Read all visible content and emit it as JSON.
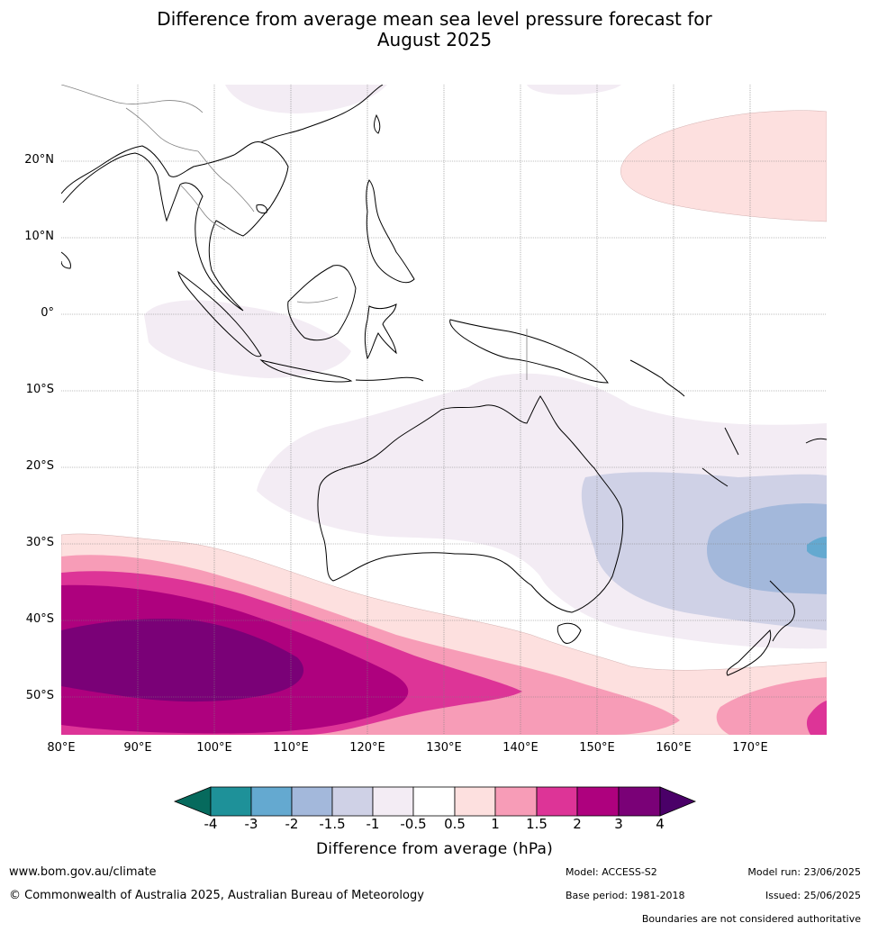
{
  "title": {
    "line1": "Difference from average mean sea level pressure forecast for",
    "line2": "August 2025"
  },
  "map": {
    "latitude_labels": [
      "20°N",
      "10°N",
      "0°",
      "10°S",
      "20°S",
      "30°S",
      "40°S",
      "50°S"
    ],
    "longitude_labels": [
      "80°E",
      "90°E",
      "100°E",
      "110°E",
      "120°E",
      "130°E",
      "140°E",
      "150°E",
      "160°E",
      "170°E"
    ],
    "extent": {
      "lon": [
        80,
        180
      ],
      "lat": [
        -55,
        30
      ]
    }
  },
  "colorbar": {
    "tick_labels": [
      "-4",
      "-3",
      "-2",
      "-1.5",
      "-1",
      "-0.5",
      "0.5",
      "1",
      "1.5",
      "2",
      "3",
      "4"
    ],
    "colors": [
      "#066a5d",
      "#1e9199",
      "#64a9d0",
      "#a3b8db",
      "#cfd1e6",
      "#f3ecf4",
      "#ffffff",
      "#fde0df",
      "#f79cb7",
      "#dd3497",
      "#ae017e",
      "#7a0177",
      "#4a0068"
    ],
    "title": "Difference from average (hPa)"
  },
  "footer": {
    "website": "www.bom.gov.au/climate",
    "copyright": "© Commonwealth of Australia 2025, Australian Bureau of Meteorology",
    "model": "Model: ACCESS-S2",
    "base_period": "Base period: 1981-2018",
    "model_run": "Model run: 23/06/2025",
    "issued": "Issued: 25/06/2025",
    "disclaimer": "Boundaries are not considered authoritative"
  }
}
